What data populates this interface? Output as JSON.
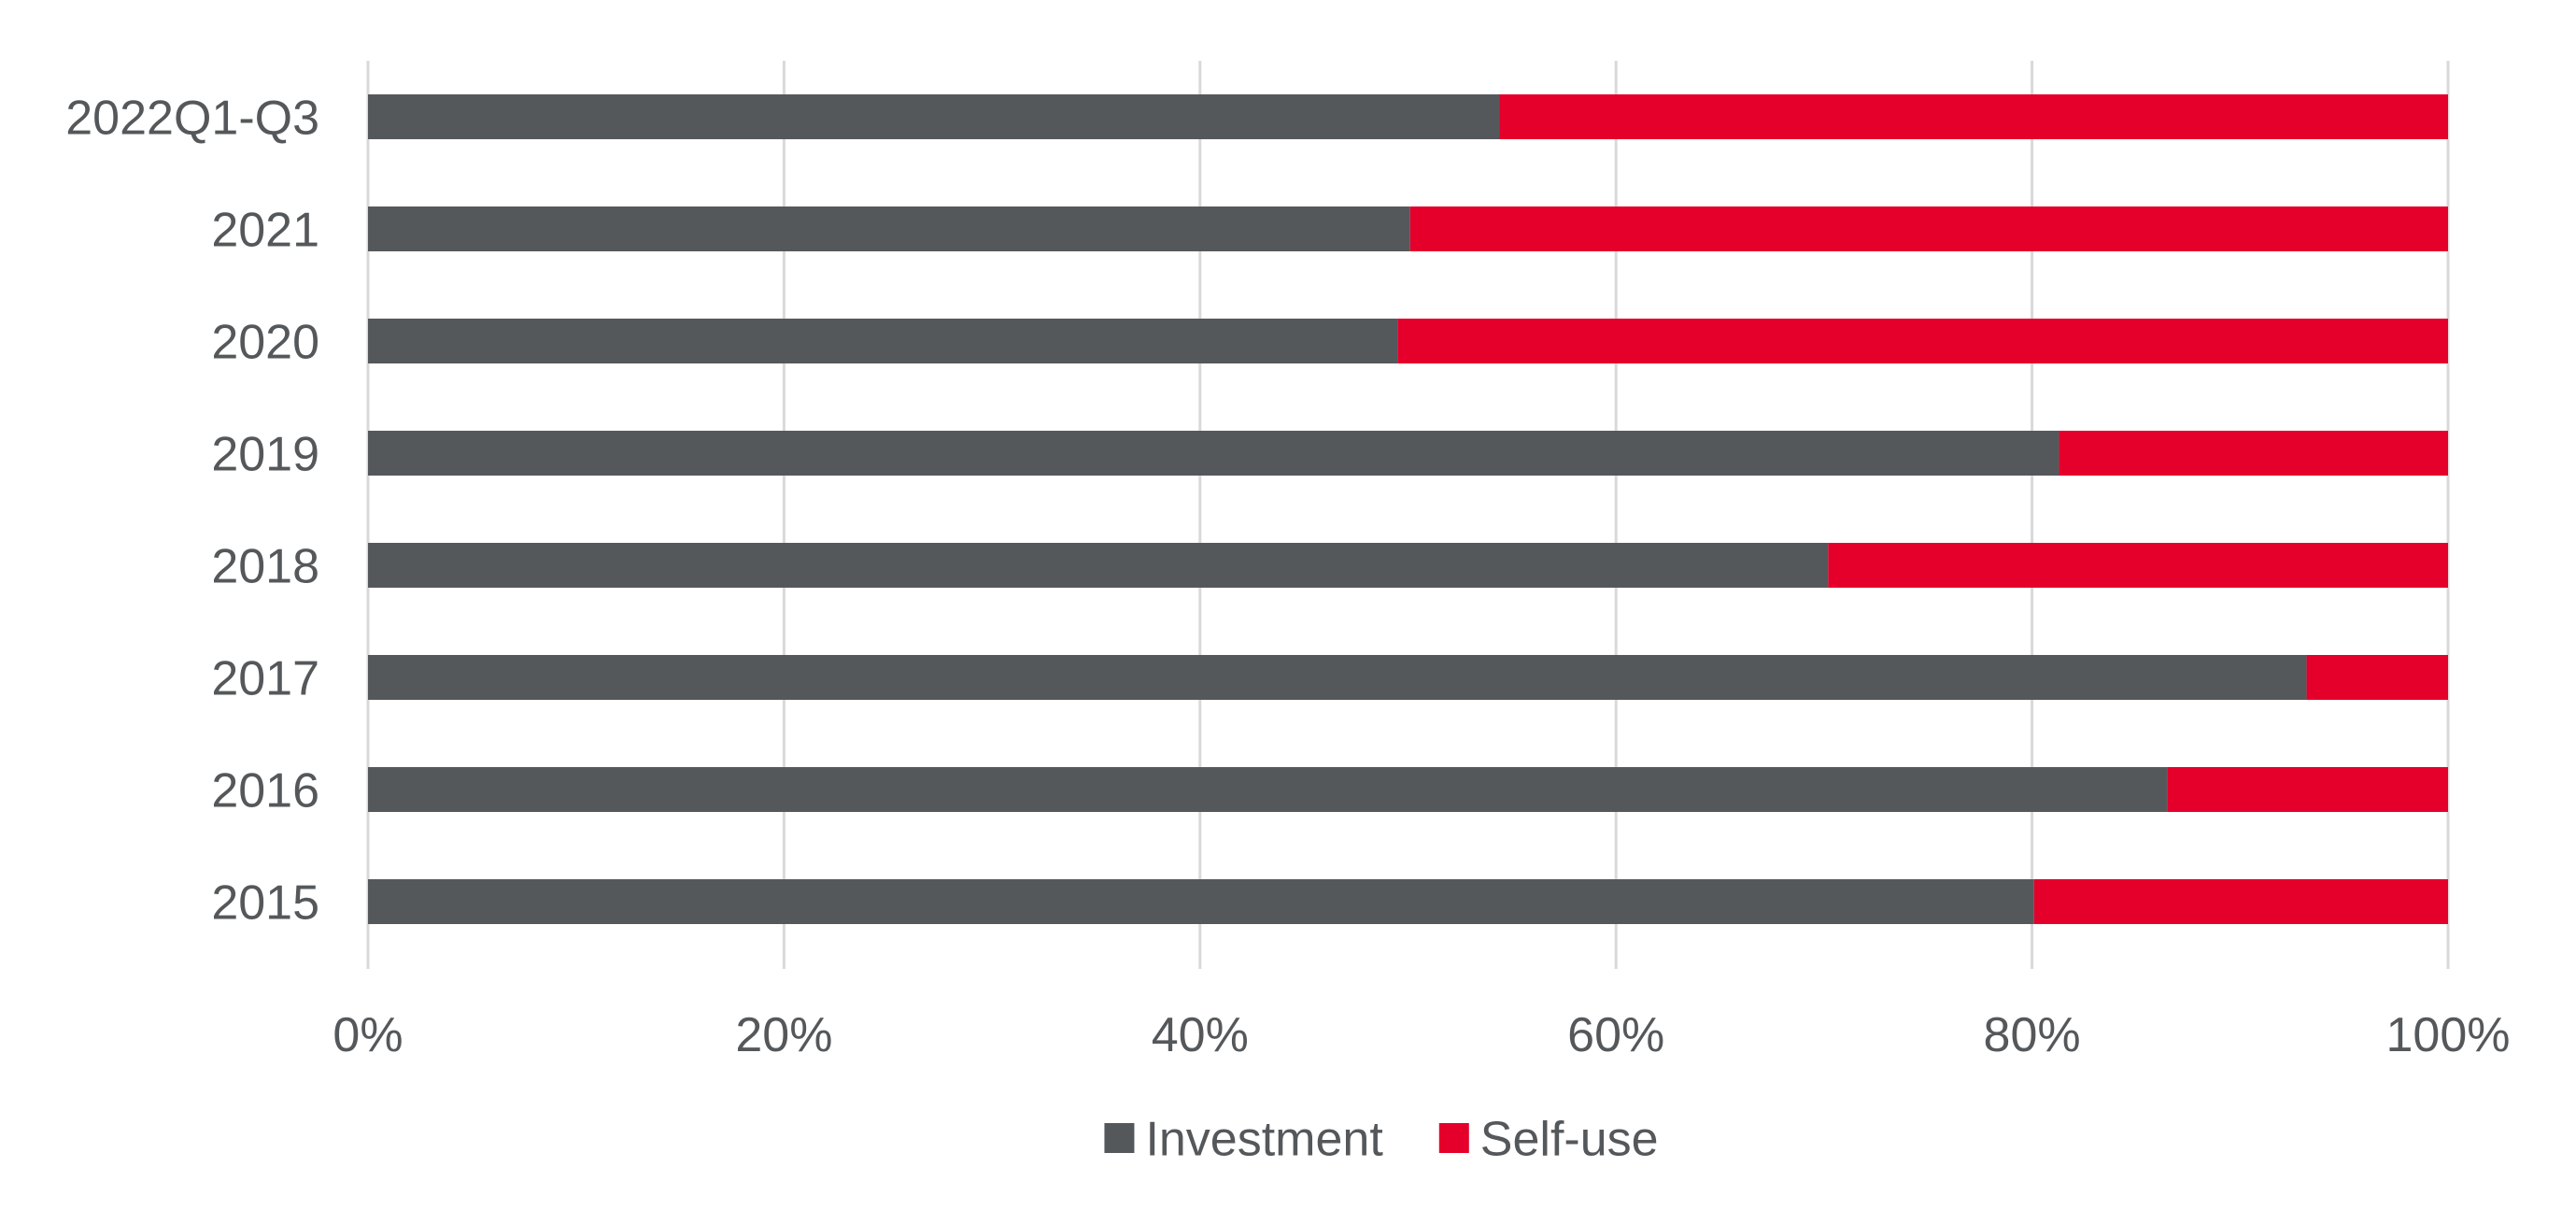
{
  "chart_data": {
    "type": "bar",
    "orientation": "horizontal",
    "stacked": true,
    "stack_mode": "percent",
    "categories": [
      "2022Q1-Q3",
      "2021",
      "2020",
      "2019",
      "2018",
      "2017",
      "2016",
      "2015"
    ],
    "series": [
      {
        "name": "Investment",
        "color": "#55585B",
        "values": [
          0.544,
          0.501,
          0.495,
          0.813,
          0.702,
          0.932,
          0.865,
          0.801
        ]
      },
      {
        "name": "Self-use",
        "color": "#E4002B",
        "values": [
          0.456,
          0.499,
          0.505,
          0.187,
          0.298,
          0.068,
          0.135,
          0.199
        ]
      }
    ],
    "x_ticks": [
      "0%",
      "20%",
      "40%",
      "60%",
      "80%",
      "100%"
    ],
    "xlim": [
      0,
      1
    ],
    "grid": "vertical",
    "legend_position": "bottom",
    "title": "",
    "xlabel": "",
    "ylabel": ""
  },
  "colors": {
    "grid": "#D9D9D9",
    "text": "#55585B"
  }
}
